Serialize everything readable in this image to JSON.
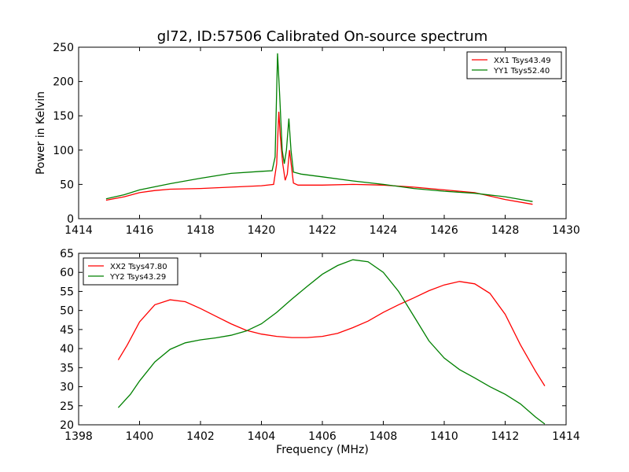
{
  "figure": {
    "title": "gl72, ID:57506 Calibrated On-source spectrum",
    "xlabel": "Frequency (MHz)"
  },
  "chart_data": [
    {
      "type": "line",
      "title": "gl72, ID:57506 Calibrated On-source spectrum",
      "xlabel": "",
      "ylabel": "Power in Kelvin",
      "xlim": [
        1414,
        1430
      ],
      "ylim": [
        0,
        250
      ],
      "xticks": [
        1414,
        1416,
        1418,
        1420,
        1422,
        1424,
        1426,
        1428,
        1430
      ],
      "yticks": [
        0,
        50,
        100,
        150,
        200,
        250
      ],
      "grid": false,
      "legend": "top-right",
      "series": [
        {
          "name": "XX1 Tsys43.49",
          "color": "#ff0000",
          "points": [
            [
              1414.9,
              27
            ],
            [
              1415.5,
              32
            ],
            [
              1416.0,
              38
            ],
            [
              1416.5,
              41
            ],
            [
              1417.0,
              43
            ],
            [
              1418.0,
              44
            ],
            [
              1419.0,
              46
            ],
            [
              1420.0,
              48
            ],
            [
              1420.4,
              50
            ],
            [
              1420.5,
              80
            ],
            [
              1420.57,
              156
            ],
            [
              1420.62,
              120
            ],
            [
              1420.7,
              80
            ],
            [
              1420.78,
              56
            ],
            [
              1420.85,
              65
            ],
            [
              1420.92,
              100
            ],
            [
              1420.98,
              78
            ],
            [
              1421.05,
              52
            ],
            [
              1421.2,
              49
            ],
            [
              1422.0,
              49
            ],
            [
              1423.0,
              50
            ],
            [
              1424.0,
              49
            ],
            [
              1425.0,
              46
            ],
            [
              1426.0,
              42
            ],
            [
              1427.0,
              38
            ],
            [
              1428.0,
              28
            ],
            [
              1428.9,
              21
            ]
          ]
        },
        {
          "name": "YY1 Tsys52.40",
          "color": "#008000",
          "points": [
            [
              1414.9,
              29
            ],
            [
              1415.5,
              35
            ],
            [
              1416.0,
              42
            ],
            [
              1417.0,
              51
            ],
            [
              1418.0,
              59
            ],
            [
              1419.0,
              66
            ],
            [
              1420.0,
              69
            ],
            [
              1420.35,
              70
            ],
            [
              1420.45,
              90
            ],
            [
              1420.53,
              241
            ],
            [
              1420.6,
              180
            ],
            [
              1420.68,
              100
            ],
            [
              1420.75,
              80
            ],
            [
              1420.82,
              100
            ],
            [
              1420.9,
              146
            ],
            [
              1420.97,
              100
            ],
            [
              1421.05,
              68
            ],
            [
              1421.3,
              65
            ],
            [
              1422.0,
              61
            ],
            [
              1423.0,
              55
            ],
            [
              1424.0,
              50
            ],
            [
              1425.0,
              44
            ],
            [
              1426.0,
              40
            ],
            [
              1427.0,
              37
            ],
            [
              1428.0,
              32
            ],
            [
              1428.9,
              25
            ]
          ]
        }
      ]
    },
    {
      "type": "line",
      "xlabel": "Frequency (MHz)",
      "ylabel": "",
      "xlim": [
        1398,
        1414
      ],
      "ylim": [
        20,
        65
      ],
      "xticks": [
        1398,
        1400,
        1402,
        1404,
        1406,
        1408,
        1410,
        1412,
        1414
      ],
      "yticks": [
        20,
        25,
        30,
        35,
        40,
        45,
        50,
        55,
        60,
        65
      ],
      "grid": false,
      "legend": "top-left",
      "series": [
        {
          "name": "XX2 Tsys47.80",
          "color": "#ff0000",
          "points": [
            [
              1399.3,
              37
            ],
            [
              1399.6,
              41
            ],
            [
              1400.0,
              47
            ],
            [
              1400.5,
              51.5
            ],
            [
              1401.0,
              52.8
            ],
            [
              1401.5,
              52.3
            ],
            [
              1402.0,
              50.5
            ],
            [
              1402.5,
              48.5
            ],
            [
              1403.0,
              46.5
            ],
            [
              1403.5,
              44.8
            ],
            [
              1404.0,
              43.8
            ],
            [
              1404.5,
              43.2
            ],
            [
              1405.0,
              42.9
            ],
            [
              1405.5,
              42.9
            ],
            [
              1406.0,
              43.2
            ],
            [
              1406.5,
              44.0
            ],
            [
              1407.0,
              45.5
            ],
            [
              1407.5,
              47.2
            ],
            [
              1408.0,
              49.5
            ],
            [
              1408.5,
              51.5
            ],
            [
              1409.0,
              53.3
            ],
            [
              1409.5,
              55.2
            ],
            [
              1410.0,
              56.7
            ],
            [
              1410.5,
              57.6
            ],
            [
              1411.0,
              57.0
            ],
            [
              1411.5,
              54.5
            ],
            [
              1412.0,
              49.0
            ],
            [
              1412.5,
              41.0
            ],
            [
              1413.0,
              34.0
            ],
            [
              1413.3,
              30.2
            ]
          ]
        },
        {
          "name": "YY2 Tsys43.29",
          "color": "#008000",
          "points": [
            [
              1399.3,
              24.5
            ],
            [
              1399.7,
              28
            ],
            [
              1400.0,
              31.5
            ],
            [
              1400.5,
              36.5
            ],
            [
              1401.0,
              39.8
            ],
            [
              1401.5,
              41.5
            ],
            [
              1402.0,
              42.3
            ],
            [
              1402.5,
              42.8
            ],
            [
              1403.0,
              43.5
            ],
            [
              1403.5,
              44.6
            ],
            [
              1404.0,
              46.5
            ],
            [
              1404.5,
              49.5
            ],
            [
              1405.0,
              53.0
            ],
            [
              1405.5,
              56.3
            ],
            [
              1406.0,
              59.5
            ],
            [
              1406.5,
              61.8
            ],
            [
              1407.0,
              63.3
            ],
            [
              1407.5,
              62.8
            ],
            [
              1408.0,
              60.0
            ],
            [
              1408.5,
              55.0
            ],
            [
              1409.0,
              48.5
            ],
            [
              1409.5,
              42.0
            ],
            [
              1410.0,
              37.5
            ],
            [
              1410.5,
              34.5
            ],
            [
              1411.0,
              32.3
            ],
            [
              1411.5,
              30.0
            ],
            [
              1412.0,
              28.0
            ],
            [
              1412.5,
              25.5
            ],
            [
              1413.0,
              22.0
            ],
            [
              1413.3,
              20.2
            ]
          ]
        }
      ]
    }
  ]
}
